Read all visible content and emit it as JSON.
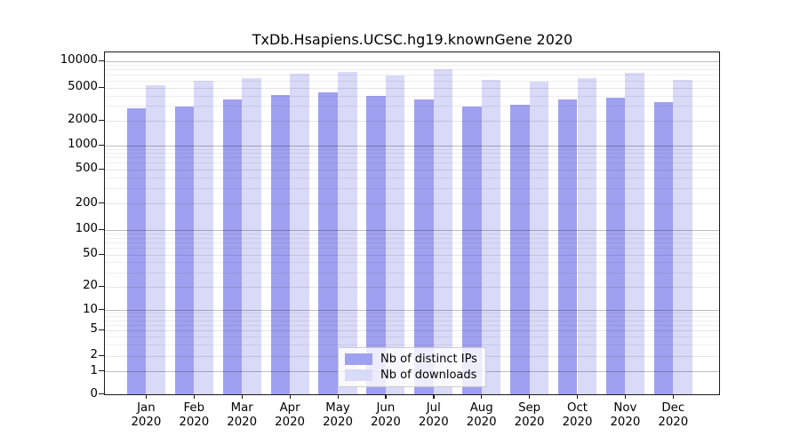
{
  "chart_data": {
    "type": "bar",
    "title": "TxDb.Hsapiens.UCSC.hg19.knownGene 2020",
    "x_months": [
      "Jan",
      "Feb",
      "Mar",
      "Apr",
      "May",
      "Jun",
      "Jul",
      "Aug",
      "Sep",
      "Oct",
      "Nov",
      "Dec"
    ],
    "x_year": "2020",
    "y_scale": "log",
    "y_ticks": [
      0,
      1,
      2,
      5,
      10,
      20,
      50,
      100,
      200,
      500,
      1000,
      2000,
      5000,
      10000
    ],
    "ylim": [
      0,
      12000
    ],
    "grid": true,
    "legend_position": "lower center",
    "series": [
      {
        "name": "Nb of distinct IPs",
        "color": "#a0a0f0",
        "values": [
          2850,
          3000,
          3600,
          4100,
          4450,
          4000,
          3650,
          3000,
          3100,
          3600,
          3850,
          3400
        ]
      },
      {
        "name": "Nb of downloads",
        "color": "#d9d9f8",
        "values": [
          5400,
          6000,
          6400,
          7200,
          7600,
          6900,
          8100,
          6100,
          5900,
          6400,
          7350,
          6100
        ]
      }
    ],
    "frame_color": "#1a1a1a"
  }
}
